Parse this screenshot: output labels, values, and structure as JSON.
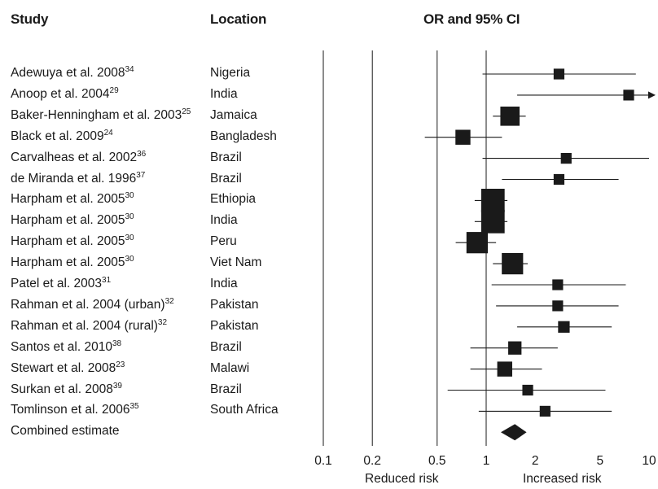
{
  "headers": {
    "study": "Study",
    "location": "Location",
    "effect": "OR and 95% CI"
  },
  "direction_labels": {
    "reduced": "Reduced risk",
    "increased": "Increased risk"
  },
  "colors": {
    "marker": "#1a1a1a",
    "line": "#1a1a1a",
    "background": "#ffffff"
  },
  "chart_data": {
    "type": "forest",
    "xscale": "log",
    "xlim": [
      0.1,
      10
    ],
    "ticks": [
      0.1,
      0.2,
      0.5,
      1,
      2,
      5,
      10
    ],
    "tick_labels": [
      "0.1",
      "0.2",
      "0.5",
      "1",
      "2",
      "5",
      "10"
    ],
    "reference_lines": [
      0.1,
      0.2,
      0.5,
      1
    ],
    "rows": [
      {
        "study": "Adewuya et al. 2008",
        "ref": "34",
        "location": "Nigeria",
        "or": 2.8,
        "lo": 0.95,
        "hi": 8.3,
        "weight": 1
      },
      {
        "study": "Anoop et al. 2004",
        "ref": "29",
        "location": "India",
        "or": 7.5,
        "lo": 1.55,
        "hi": 11,
        "weight": 1,
        "arrow": true
      },
      {
        "study": "Baker-Henningham et al. 2003",
        "ref": "25",
        "location": "Jamaica",
        "or": 1.4,
        "lo": 1.1,
        "hi": 1.75,
        "weight": 3
      },
      {
        "study": "Black et al. 2009",
        "ref": "24",
        "location": "Bangladesh",
        "or": 0.72,
        "lo": 0.42,
        "hi": 1.25,
        "weight": 2
      },
      {
        "study": "Carvalheas et al. 2002",
        "ref": "36",
        "location": "Brazil",
        "or": 3.1,
        "lo": 0.95,
        "hi": 10,
        "weight": 1
      },
      {
        "study": "de Miranda et al. 1996",
        "ref": "37",
        "location": "Brazil",
        "or": 2.8,
        "lo": 1.25,
        "hi": 6.5,
        "weight": 1
      },
      {
        "study": "Harpham et al. 2005",
        "ref": "30",
        "location": "Ethiopia",
        "or": 1.1,
        "lo": 0.85,
        "hi": 1.35,
        "weight": 4
      },
      {
        "study": "Harpham et al. 2005",
        "ref": "30",
        "location": "India",
        "or": 1.1,
        "lo": 0.85,
        "hi": 1.35,
        "weight": 4
      },
      {
        "study": "Harpham et al. 2005",
        "ref": "30",
        "location": "Peru",
        "or": 0.88,
        "lo": 0.65,
        "hi": 1.15,
        "weight": 3.5
      },
      {
        "study": "Harpham et al. 2005",
        "ref": "30",
        "location": "Viet Nam",
        "or": 1.45,
        "lo": 1.1,
        "hi": 1.8,
        "weight": 3.5
      },
      {
        "study": "Patel et al. 2003",
        "ref": "31",
        "location": "India",
        "or": 2.75,
        "lo": 1.08,
        "hi": 7.2,
        "weight": 1
      },
      {
        "study": "Rahman et al. 2004 (urban)",
        "ref": "32",
        "location": "Pakistan",
        "or": 2.75,
        "lo": 1.15,
        "hi": 6.5,
        "weight": 1
      },
      {
        "study": "Rahman et al. 2004 (rural)",
        "ref": "32",
        "location": "Pakistan",
        "or": 3.0,
        "lo": 1.55,
        "hi": 5.9,
        "weight": 1.2
      },
      {
        "study": "Santos et al. 2010",
        "ref": "38",
        "location": "Brazil",
        "or": 1.5,
        "lo": 0.8,
        "hi": 2.75,
        "weight": 1.6
      },
      {
        "study": "Stewart et al. 2008",
        "ref": "23",
        "location": "Malawi",
        "or": 1.3,
        "lo": 0.8,
        "hi": 2.2,
        "weight": 2
      },
      {
        "study": "Surkan et al. 2008",
        "ref": "39",
        "location": "Brazil",
        "or": 1.8,
        "lo": 0.58,
        "hi": 5.4,
        "weight": 1
      },
      {
        "study": "Tomlinson et al. 2006",
        "ref": "35",
        "location": "South Africa",
        "or": 2.3,
        "lo": 0.9,
        "hi": 5.9,
        "weight": 1
      }
    ],
    "combined": {
      "label": "Combined estimate",
      "or": 1.5,
      "lo": 1.23,
      "hi": 1.77
    }
  }
}
